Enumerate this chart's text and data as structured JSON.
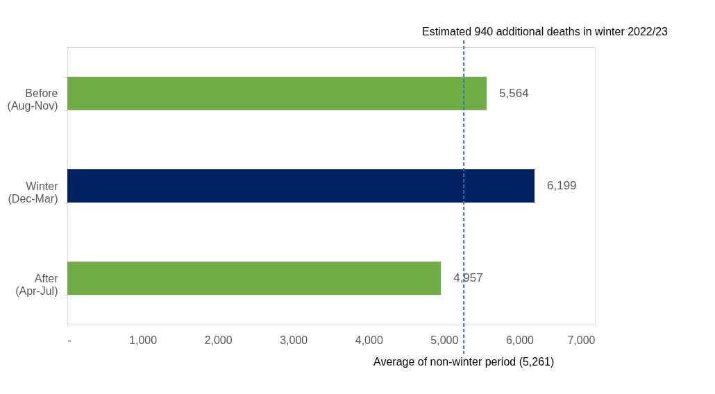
{
  "chart_data": {
    "type": "bar",
    "orientation": "horizontal",
    "categories": [
      "Before\n(Aug-Nov)",
      "Winter\n(Dec-Mar)",
      "After\n(Apr-Jul)"
    ],
    "values": [
      5564,
      6199,
      4957
    ],
    "colors": [
      "#70ad47",
      "#002060",
      "#70ad47"
    ],
    "xlim": [
      0,
      7000
    ],
    "xticks": [
      {
        "value": 0,
        "label": "-"
      },
      {
        "value": 1000,
        "label": "1,000"
      },
      {
        "value": 2000,
        "label": "2,000"
      },
      {
        "value": 3000,
        "label": "3,000"
      },
      {
        "value": 4000,
        "label": "4,000"
      },
      {
        "value": 5000,
        "label": "5,000"
      },
      {
        "value": 6000,
        "label": "6,000"
      },
      {
        "value": 7000,
        "label": "7,000"
      }
    ],
    "ref_lines": [
      {
        "axis": "x",
        "value": 5261,
        "label": "Average of non-winter period (5,261)",
        "color": "#2e75b6",
        "line_style": "dashed"
      }
    ],
    "annotations": [
      "Estimated 940 additional deaths in winter 2022/23"
    ],
    "value_labels": [
      "5,564",
      "6,199",
      "4,957"
    ],
    "grid": false
  }
}
